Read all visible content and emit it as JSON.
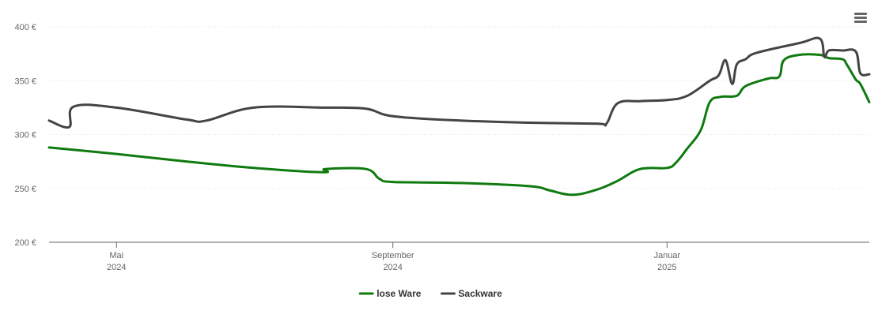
{
  "menu": {
    "icon": "hamburger-menu-icon"
  },
  "chart_data": {
    "type": "line",
    "title": "",
    "xlabel": "",
    "ylabel": "",
    "ylim": [
      200,
      400
    ],
    "y_ticks": [
      200,
      250,
      300,
      350,
      400
    ],
    "y_tick_suffix": " €",
    "y_tick_labels": [
      "200 €",
      "250 €",
      "300 €",
      "350 €",
      "400 €"
    ],
    "xlim": [
      "2024-04-01",
      "2025-04-01"
    ],
    "x_ticks": [
      {
        "date": "2024-05-01",
        "month": "Mai",
        "year": "2024"
      },
      {
        "date": "2024-09-01",
        "month": "September",
        "year": "2024"
      },
      {
        "date": "2025-01-01",
        "month": "Januar",
        "year": "2025"
      }
    ],
    "grid": "horizontal",
    "legend_position": "bottom-center",
    "series": [
      {
        "name": "lose Ware",
        "color": "#0f7a0f",
        "points": [
          [
            "2024-04-01",
            288
          ],
          [
            "2024-05-01",
            282
          ],
          [
            "2024-06-01",
            275
          ],
          [
            "2024-07-01",
            269
          ],
          [
            "2024-08-01",
            265
          ],
          [
            "2024-08-02",
            268
          ],
          [
            "2024-08-20",
            268
          ],
          [
            "2024-08-26",
            259
          ],
          [
            "2024-09-01",
            256
          ],
          [
            "2024-10-01",
            255
          ],
          [
            "2024-11-01",
            252
          ],
          [
            "2024-11-10",
            248
          ],
          [
            "2024-11-20",
            244
          ],
          [
            "2024-12-01",
            249
          ],
          [
            "2024-12-10",
            257
          ],
          [
            "2024-12-20",
            268
          ],
          [
            "2025-01-01",
            269
          ],
          [
            "2025-01-05",
            274
          ],
          [
            "2025-01-10",
            287
          ],
          [
            "2025-01-16",
            304
          ],
          [
            "2025-01-20",
            330
          ],
          [
            "2025-01-25",
            335
          ],
          [
            "2025-02-01",
            336
          ],
          [
            "2025-02-05",
            345
          ],
          [
            "2025-02-15",
            352
          ],
          [
            "2025-02-20",
            354
          ],
          [
            "2025-02-22",
            369
          ],
          [
            "2025-03-01",
            374
          ],
          [
            "2025-03-10",
            374
          ],
          [
            "2025-03-14",
            371
          ],
          [
            "2025-03-20",
            370
          ],
          [
            "2025-03-22",
            365
          ],
          [
            "2025-03-26",
            351
          ],
          [
            "2025-03-28",
            347
          ],
          [
            "2025-04-01",
            330
          ]
        ]
      },
      {
        "name": "Sackware",
        "color": "#444444",
        "points": [
          [
            "2024-04-01",
            313
          ],
          [
            "2024-04-10",
            307
          ],
          [
            "2024-04-12",
            326
          ],
          [
            "2024-05-01",
            325
          ],
          [
            "2024-06-01",
            314
          ],
          [
            "2024-06-10",
            313
          ],
          [
            "2024-07-01",
            325
          ],
          [
            "2024-08-01",
            325
          ],
          [
            "2024-08-20",
            324
          ],
          [
            "2024-09-01",
            317
          ],
          [
            "2024-10-01",
            313
          ],
          [
            "2024-11-01",
            311
          ],
          [
            "2024-12-01",
            310
          ],
          [
            "2024-12-05",
            310
          ],
          [
            "2024-12-10",
            329
          ],
          [
            "2024-12-20",
            331
          ],
          [
            "2025-01-01",
            332
          ],
          [
            "2025-01-10",
            336
          ],
          [
            "2025-01-20",
            350
          ],
          [
            "2025-01-24",
            355
          ],
          [
            "2025-01-27",
            369
          ],
          [
            "2025-01-30",
            347
          ],
          [
            "2025-02-01",
            365
          ],
          [
            "2025-02-05",
            370
          ],
          [
            "2025-02-10",
            376
          ],
          [
            "2025-03-01",
            385
          ],
          [
            "2025-03-10",
            389
          ],
          [
            "2025-03-12",
            372
          ],
          [
            "2025-03-14",
            378
          ],
          [
            "2025-03-20",
            378
          ],
          [
            "2025-03-26",
            377
          ],
          [
            "2025-03-28",
            357
          ],
          [
            "2025-04-01",
            356
          ]
        ]
      }
    ]
  }
}
